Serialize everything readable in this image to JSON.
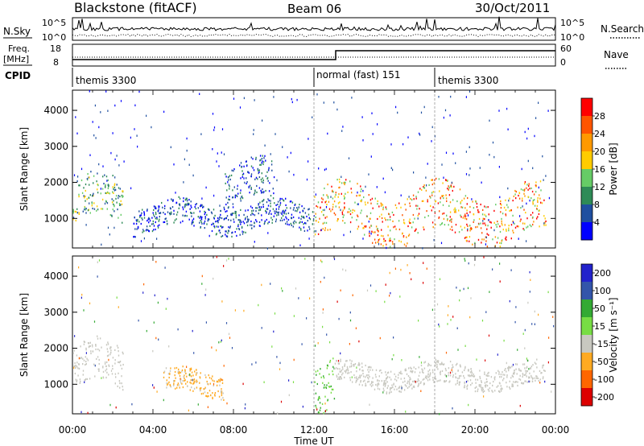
{
  "header": {
    "station": "Blackstone (fitACF)",
    "beam": "Beam 06",
    "date": "30/Oct/2011"
  },
  "side_labels": {
    "nsky": "N.Sky",
    "freq_line1": "Freq.",
    "freq_line2": "[MHz]",
    "cpid": "CPID",
    "nsearch": "N.Search",
    "nave": "Nave",
    "nsky_ticks": [
      "10^5",
      "10^0"
    ],
    "nsearch_ticks": [
      "10^5",
      "10^0"
    ],
    "freq_ticks": [
      "18",
      "8"
    ],
    "nave_ticks": [
      "60",
      "0"
    ]
  },
  "cpid_segments": [
    {
      "label": "themis 3300",
      "start_hour": 0.0
    },
    {
      "label": "normal (fast) 151",
      "start_hour": 12.0
    },
    {
      "label": "themis 3300",
      "start_hour": 18.0
    }
  ],
  "colors": {
    "power_scale": [
      "#0000ff",
      "#1f4fa0",
      "#2e8b57",
      "#66cc66",
      "#ffcc00",
      "#ff9900",
      "#ff5500",
      "#ff0000"
    ],
    "velocity_scale": [
      "#2222cc",
      "#3355aa",
      "#33aa33",
      "#77dd44",
      "#c8c8c0",
      "#ffaa22",
      "#ff6600",
      "#dd0000"
    ]
  },
  "chart_data": [
    {
      "type": "heatmap",
      "name": "power",
      "ylabel": "Slant Range [km]",
      "xlabel": "Time UT",
      "xlim_hours": [
        0,
        24
      ],
      "x_tick_labels": [
        "00:00",
        "04:00",
        "08:00",
        "12:00",
        "16:00",
        "20:00",
        "00:00"
      ],
      "ylim": [
        180,
        4560
      ],
      "y_ticks": [
        1000,
        2000,
        3000,
        4000
      ],
      "colorbar": {
        "label": "Power [dB]",
        "ticks": [
          "4",
          "8",
          "12",
          "16",
          "20",
          "24",
          "28"
        ],
        "range": [
          0,
          30
        ]
      },
      "backscatter_regions": [
        {
          "t_start": 0.0,
          "t_end": 2.5,
          "range_start": 1200,
          "range_end": 2500,
          "level": "mid"
        },
        {
          "t_start": 3.0,
          "t_end": 12.0,
          "range_start": 900,
          "range_end": 1700,
          "level": "low-mid"
        },
        {
          "t_start": 7.5,
          "t_end": 10.0,
          "range_start": 1700,
          "range_end": 2900,
          "level": "low"
        },
        {
          "t_start": 12.0,
          "t_end": 23.5,
          "range_start": 800,
          "range_end": 2300,
          "level": "high"
        }
      ]
    },
    {
      "type": "heatmap",
      "name": "velocity",
      "ylabel": "Slant Range [km]",
      "xlabel": "Time UT",
      "xlim_hours": [
        0,
        24
      ],
      "x_tick_labels": [
        "00:00",
        "04:00",
        "08:00",
        "12:00",
        "16:00",
        "20:00",
        "00:00"
      ],
      "ylim": [
        180,
        4560
      ],
      "y_ticks": [
        1000,
        2000,
        3000,
        4000
      ],
      "colorbar": {
        "label": "Velocity [m s⁻¹]",
        "ticks": [
          "200",
          "100",
          "50",
          "15",
          "-15",
          "-50",
          "-100",
          "-200"
        ],
        "range": [
          -250,
          250
        ]
      },
      "backscatter_regions": [
        {
          "t_start": 0.0,
          "t_end": 2.5,
          "range_start": 1200,
          "range_end": 2500,
          "velocity": "ground"
        },
        {
          "t_start": 4.5,
          "t_end": 7.5,
          "range_start": 900,
          "range_end": 1600,
          "velocity": "negative"
        },
        {
          "t_start": 12.0,
          "t_end": 13.0,
          "range_start": 800,
          "range_end": 2300,
          "velocity": "positive"
        },
        {
          "t_start": 13.0,
          "t_end": 23.5,
          "range_start": 1100,
          "range_end": 1800,
          "velocity": "ground"
        }
      ]
    }
  ]
}
